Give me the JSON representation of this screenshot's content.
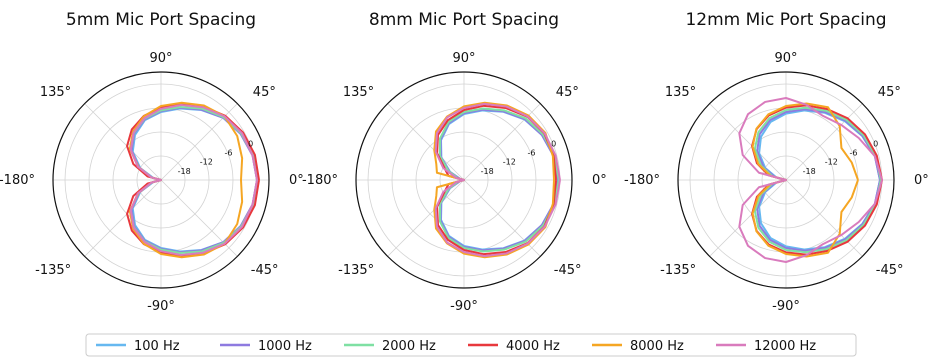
{
  "chart_data": {
    "type": "polar-line",
    "angle_tick_labels": [
      "0°",
      "45°",
      "90°",
      "135°",
      "-180°",
      "-135°",
      "-90°",
      "-45°"
    ],
    "angle_tick_degrees": [
      0,
      45,
      90,
      135,
      180,
      -135,
      -90,
      -45
    ],
    "radial_tick_labels": [
      "-18",
      "-12",
      "-6",
      "0"
    ],
    "radial_ticks": [
      -18,
      -12,
      -6,
      0
    ],
    "rlim": [
      -24,
      3
    ],
    "grid": true,
    "legend": {
      "placement": "bottom-center",
      "entries": [
        "100 Hz",
        "1000 Hz",
        "2000 Hz",
        "4000 Hz",
        "8000 Hz",
        "12000 Hz"
      ]
    },
    "series_colors": {
      "100 Hz": "#66b8f0",
      "1000 Hz": "#8e7ae0",
      "2000 Hz": "#7fe0a3",
      "4000 Hz": "#e8383d",
      "8000 Hz": "#f5a623",
      "12000 Hz": "#d97bbd"
    },
    "panels": [
      {
        "title": "5mm Mic Port Spacing",
        "series": [
          {
            "name": "100 Hz",
            "angles": [
              0,
              15,
              30,
              45,
              60,
              75,
              90,
              105,
              120,
              135,
              150,
              165,
              180
            ],
            "values": [
              0,
              -0.3,
              -0.9,
              -2,
              -3.8,
              -5.5,
              -7,
              -8.5,
              -11,
              -14,
              -18,
              -22,
              -24
            ]
          },
          {
            "name": "1000 Hz",
            "angles": [
              0,
              15,
              30,
              45,
              60,
              75,
              90,
              105,
              120,
              135,
              150,
              165,
              180
            ],
            "values": [
              0,
              -0.3,
              -1,
              -2,
              -3.7,
              -5.3,
              -6.8,
              -8.3,
              -10.6,
              -13.6,
              -17.6,
              -21.6,
              -24
            ]
          },
          {
            "name": "2000 Hz",
            "angles": [
              0,
              15,
              30,
              45,
              60,
              75,
              90,
              105,
              120,
              135,
              150,
              165,
              180
            ],
            "values": [
              0,
              -0.2,
              -0.8,
              -1.8,
              -3.4,
              -5.1,
              -6.6,
              -8.1,
              -10.4,
              -13.3,
              -17.3,
              -21.5,
              -24
            ]
          },
          {
            "name": "4000 Hz",
            "angles": [
              0,
              15,
              30,
              45,
              60,
              75,
              90,
              105,
              120,
              135,
              150,
              165,
              180
            ],
            "values": [
              0.5,
              0.3,
              -0.3,
              -1.3,
              -2.8,
              -4.4,
              -5.9,
              -7.4,
              -9.4,
              -12,
              -16,
              -20.5,
              -24
            ]
          },
          {
            "name": "8000 Hz",
            "angles": [
              0,
              15,
              30,
              45,
              60,
              75,
              90,
              105,
              120,
              135,
              150,
              165,
              180
            ],
            "values": [
              -4,
              -3,
              -2,
              -1.5,
              -2.5,
              -4,
              -5.5,
              -7.5,
              -10,
              -13,
              -17.5,
              -21.5,
              -24
            ]
          },
          {
            "name": "12000 Hz",
            "angles": [
              0,
              15,
              30,
              45,
              60,
              75,
              90,
              105,
              120,
              135,
              150,
              165,
              180
            ],
            "values": [
              0,
              -0.3,
              -0.6,
              -1.5,
              -3,
              -4.6,
              -6.2,
              -8,
              -10.3,
              -13.3,
              -17.3,
              -21.5,
              -24
            ]
          }
        ]
      },
      {
        "title": "8mm Mic Port Spacing",
        "series": [
          {
            "name": "100 Hz",
            "angles": [
              0,
              15,
              30,
              45,
              60,
              75,
              90,
              105,
              120,
              135,
              150,
              165,
              180
            ],
            "values": [
              -0.5,
              -0.8,
              -1.5,
              -2.6,
              -4.3,
              -6,
              -7.5,
              -9.5,
              -12.5,
              -16,
              -20,
              -23,
              -24
            ]
          },
          {
            "name": "1000 Hz",
            "angles": [
              0,
              15,
              30,
              45,
              60,
              75,
              90,
              105,
              120,
              135,
              150,
              165,
              180
            ],
            "values": [
              -0.5,
              -0.8,
              -1.5,
              -2.5,
              -4.2,
              -5.8,
              -7.3,
              -9.3,
              -12.3,
              -15.8,
              -19.8,
              -23,
              -24
            ]
          },
          {
            "name": "2000 Hz",
            "angles": [
              0,
              15,
              30,
              45,
              60,
              75,
              90,
              105,
              120,
              135,
              150,
              165,
              180
            ],
            "values": [
              -0.3,
              -0.6,
              -1.2,
              -2.2,
              -3.9,
              -5.5,
              -7,
              -9,
              -12,
              -15.5,
              -19.5,
              -22.5,
              -24
            ]
          },
          {
            "name": "4000 Hz",
            "angles": [
              0,
              15,
              30,
              45,
              60,
              75,
              90,
              105,
              120,
              135,
              150,
              165,
              180
            ],
            "values": [
              -1,
              -0.8,
              -0.8,
              -1.6,
              -3.2,
              -4.8,
              -6.5,
              -8.5,
              -11,
              -14.5,
              -18.5,
              -20,
              -24
            ]
          },
          {
            "name": "8000 Hz",
            "angles": [
              0,
              15,
              30,
              45,
              60,
              75,
              90,
              105,
              120,
              135,
              150,
              165,
              180
            ],
            "values": [
              -1.5,
              -1,
              -0.5,
              -1.2,
              -2.5,
              -4,
              -5.6,
              -7.6,
              -10,
              -13.5,
              -16,
              -17,
              -24
            ]
          },
          {
            "name": "12000 Hz",
            "angles": [
              0,
              15,
              30,
              45,
              60,
              75,
              90,
              105,
              120,
              135,
              150,
              165,
              180
            ],
            "values": [
              0,
              -0.3,
              -0.7,
              -1.5,
              -2.8,
              -4.3,
              -6,
              -7.8,
              -10.5,
              -14,
              -18,
              -22,
              -24
            ]
          }
        ]
      },
      {
        "title": "12mm Mic Port Spacing",
        "series": [
          {
            "name": "100 Hz",
            "angles": [
              0,
              15,
              30,
              45,
              60,
              75,
              90,
              105,
              120,
              135,
              150,
              165,
              180
            ],
            "values": [
              -0.5,
              -1,
              -2,
              -3.2,
              -4.6,
              -6,
              -7.4,
              -9,
              -11.5,
              -14.5,
              -18,
              -21.5,
              -24
            ]
          },
          {
            "name": "1000 Hz",
            "angles": [
              0,
              15,
              30,
              45,
              60,
              75,
              90,
              105,
              120,
              135,
              150,
              165,
              180
            ],
            "values": [
              -0.5,
              -1,
              -1.9,
              -3,
              -4.4,
              -5.7,
              -7,
              -8.5,
              -10.8,
              -13.8,
              -17.5,
              -21,
              -24
            ]
          },
          {
            "name": "2000 Hz",
            "angles": [
              0,
              15,
              30,
              45,
              60,
              75,
              90,
              105,
              120,
              135,
              150,
              165,
              180
            ],
            "values": [
              -0.3,
              -0.8,
              -1.6,
              -2.7,
              -4,
              -5.3,
              -6.5,
              -8,
              -10.2,
              -13,
              -16.8,
              -20.5,
              -24
            ]
          },
          {
            "name": "4000 Hz",
            "angles": [
              0,
              15,
              30,
              45,
              60,
              75,
              90,
              105,
              120,
              135,
              150,
              165,
              180
            ],
            "values": [
              0,
              -0.5,
              -1.2,
              -2.2,
              -3.5,
              -4.7,
              -5.9,
              -7.3,
              -9.3,
              -12,
              -15.6,
              -19.5,
              -24
            ]
          },
          {
            "name": "8000 Hz",
            "angles": [
              0,
              15,
              30,
              45,
              60,
              75,
              90,
              105,
              120,
              135,
              150,
              165,
              180
            ],
            "values": [
              -6,
              -7,
              -8,
              -5,
              -3,
              -4.2,
              -5.5,
              -7,
              -9.2,
              -12.2,
              -16,
              -20,
              -24
            ]
          },
          {
            "name": "12000 Hz",
            "angles": [
              0,
              15,
              30,
              45,
              60,
              75,
              90,
              105,
              120,
              135,
              150,
              165,
              180
            ],
            "values": [
              0,
              -1,
              -3,
              -4.5,
              -5.5,
              -4.5,
              -3.5,
              -3.8,
              -5,
              -7.5,
              -11.5,
              -17,
              -24
            ]
          }
        ]
      }
    ]
  }
}
